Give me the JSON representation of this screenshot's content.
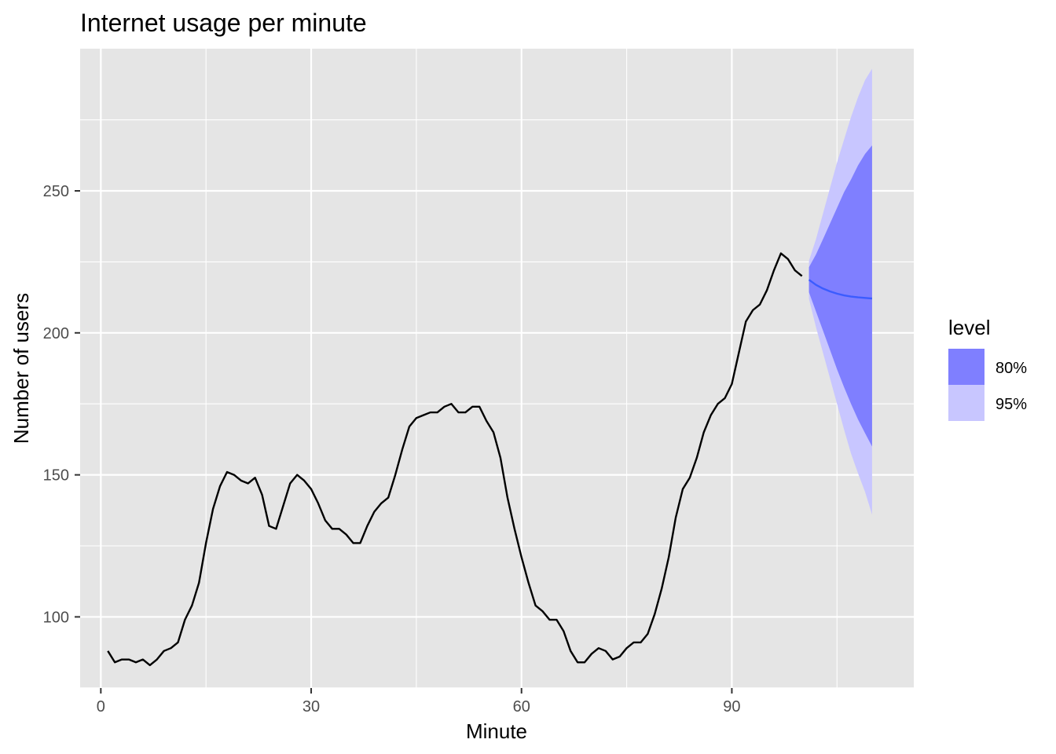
{
  "chart_data": {
    "type": "line",
    "title": "Internet usage per minute",
    "xlabel": "Minute",
    "ylabel": "Number of users",
    "xlim": [
      -2.95,
      115.95
    ],
    "ylim": [
      74.95,
      300.05
    ],
    "x_ticks_major": [
      0,
      30,
      60,
      90
    ],
    "x_ticks_minor": [
      15,
      45,
      75,
      105
    ],
    "y_ticks_major": [
      100,
      150,
      200,
      250
    ],
    "y_ticks_minor": [
      75,
      125,
      175,
      225,
      275
    ],
    "grid": true,
    "colors": {
      "panel_background": "#e5e5e5",
      "grid_line": "#ffffff",
      "observed_line": "#000000",
      "forecast_line": "#3b5cff",
      "band_80": "#7f7fff",
      "band_95": "#c8c6ff"
    },
    "legend": {
      "title": "level",
      "placement": "right",
      "items": [
        {
          "label": "80%",
          "color": "#7f7fff"
        },
        {
          "label": "95%",
          "color": "#c8c6ff"
        }
      ]
    },
    "series": [
      {
        "role": "observed",
        "x": [
          1,
          2,
          3,
          4,
          5,
          6,
          7,
          8,
          9,
          10,
          11,
          12,
          13,
          14,
          15,
          16,
          17,
          18,
          19,
          20,
          21,
          22,
          23,
          24,
          25,
          26,
          27,
          28,
          29,
          30,
          31,
          32,
          33,
          34,
          35,
          36,
          37,
          38,
          39,
          40,
          41,
          42,
          43,
          44,
          45,
          46,
          47,
          48,
          49,
          50,
          51,
          52,
          53,
          54,
          55,
          56,
          57,
          58,
          59,
          60,
          61,
          62,
          63,
          64,
          65,
          66,
          67,
          68,
          69,
          70,
          71,
          72,
          73,
          74,
          75,
          76,
          77,
          78,
          79,
          80,
          81,
          82,
          83,
          84,
          85,
          86,
          87,
          88,
          89,
          90,
          91,
          92,
          93,
          94,
          95,
          96,
          97,
          98,
          99,
          100
        ],
        "values": [
          88,
          84,
          85,
          85,
          84,
          85,
          83,
          85,
          88,
          89,
          91,
          99,
          104,
          112,
          126,
          138,
          146,
          151,
          150,
          148,
          147,
          149,
          143,
          132,
          131,
          139,
          147,
          150,
          148,
          145,
          140,
          134,
          131,
          131,
          129,
          126,
          126,
          132,
          137,
          140,
          142,
          150,
          159,
          167,
          170,
          171,
          172,
          172,
          174,
          175,
          172,
          172,
          174,
          174,
          169,
          165,
          156,
          142,
          131,
          121,
          112,
          104,
          102,
          99,
          99,
          95,
          88,
          84,
          84,
          87,
          89,
          88,
          85,
          86,
          89,
          91,
          91,
          94,
          101,
          110,
          121,
          135,
          145,
          149,
          156,
          165,
          171,
          175,
          177,
          182,
          193,
          204,
          208,
          210,
          215,
          222,
          228,
          226,
          222,
          220
        ]
      },
      {
        "role": "forecast",
        "x": [
          101,
          102,
          103,
          104,
          105,
          106,
          107,
          108,
          109,
          110
        ],
        "mean": [
          218.7,
          216.9,
          215.6,
          214.6,
          213.8,
          213.2,
          212.8,
          212.5,
          212.3,
          212.1
        ],
        "lo80": [
          214.3,
          207.5,
          200.8,
          194.0,
          187.2,
          180.9,
          175.0,
          169.5,
          164.7,
          160.0
        ],
        "hi80": [
          223.1,
          227.6,
          233.0,
          238.5,
          244.0,
          249.5,
          254.0,
          259.0,
          263.0,
          266.0
        ],
        "lo95": [
          212.0,
          202.0,
          193.0,
          184.0,
          175.0,
          166.0,
          157.5,
          150.5,
          144.0,
          136.0
        ],
        "hi95": [
          225.4,
          233.0,
          242.0,
          251.0,
          260.0,
          268.0,
          276.0,
          283.0,
          289.0,
          293.0
        ]
      }
    ]
  }
}
